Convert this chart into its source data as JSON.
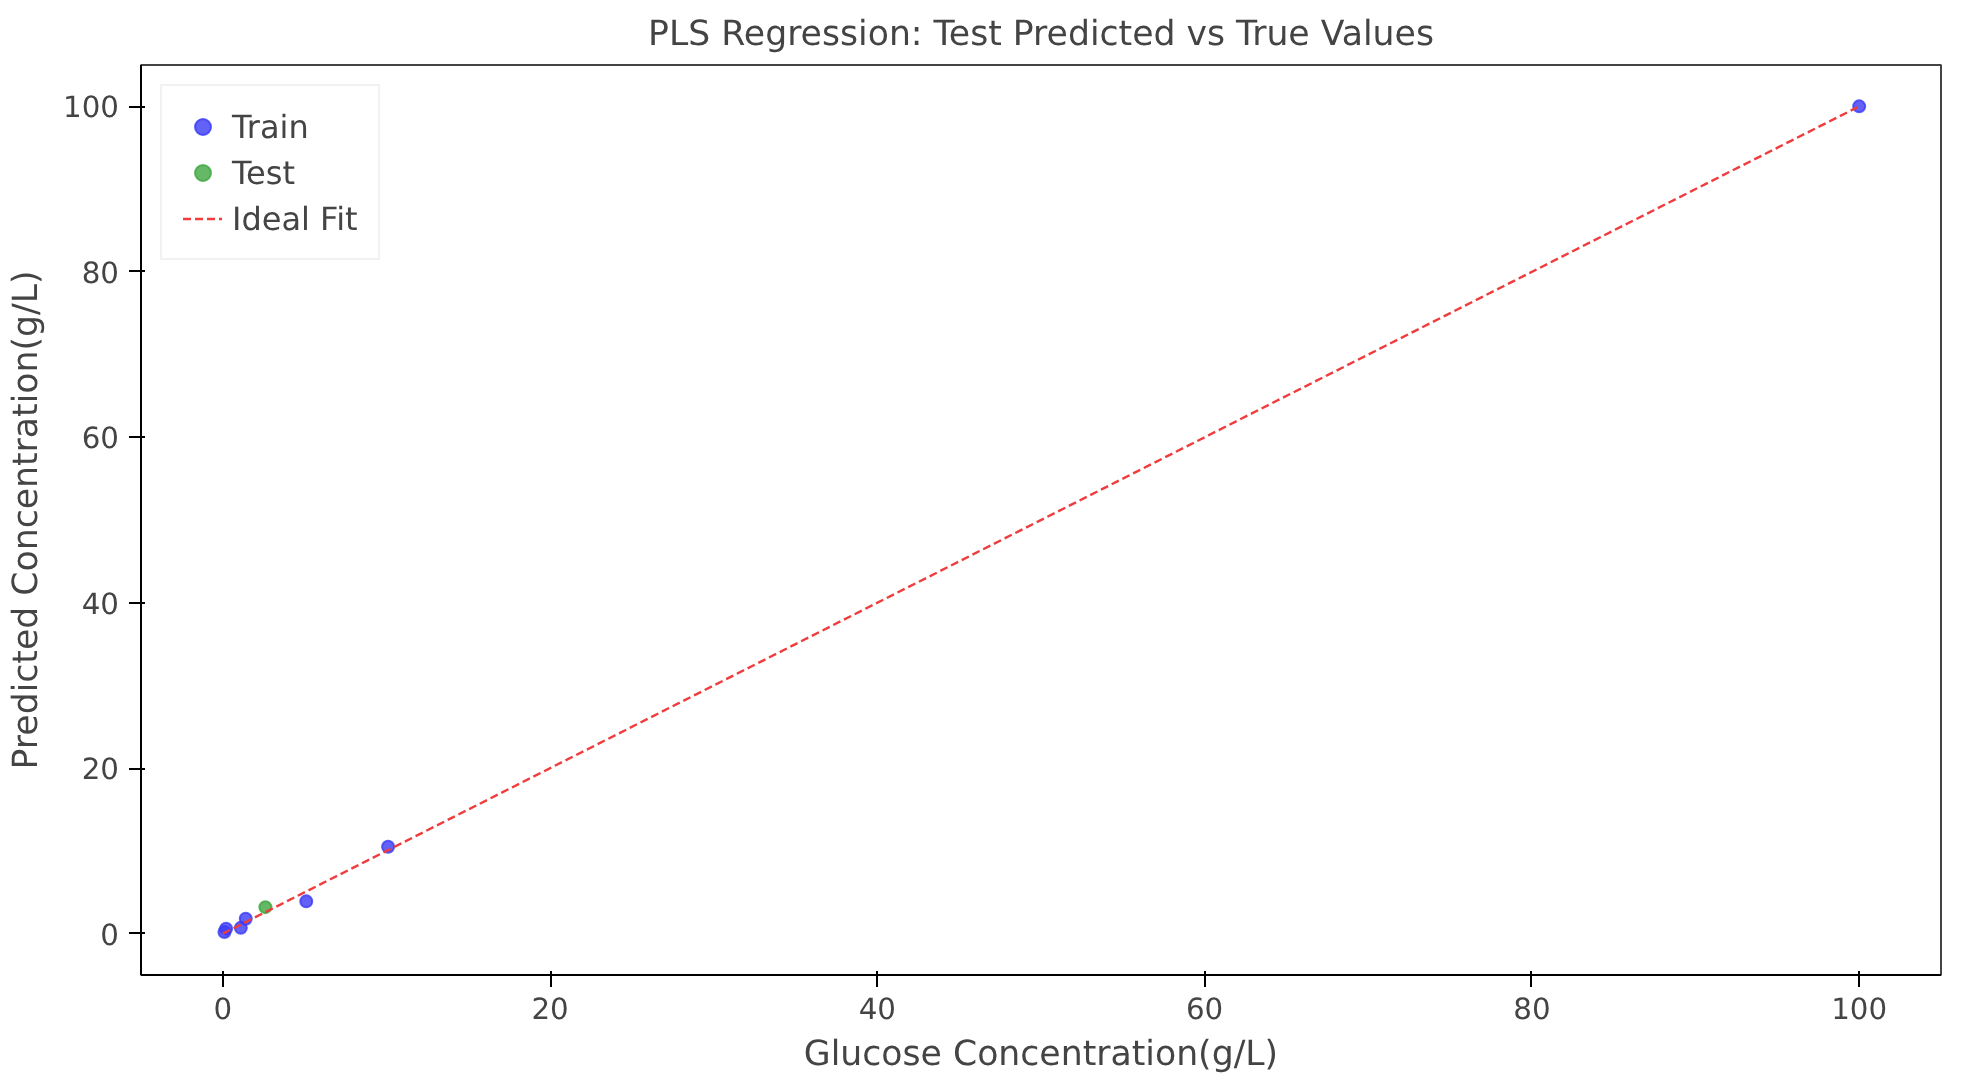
{
  "chart_data": {
    "type": "scatter",
    "title": "PLS Regression: Test Predicted vs True Values",
    "xlabel": "Glucose Concentration(g/L)",
    "ylabel": "Predicted Concentration(g/L)",
    "series": [
      {
        "name": "Train",
        "marker": "circle",
        "color": "#3b3bf5",
        "x": [
          0.1,
          0.2,
          1.1,
          1.4,
          5.1,
          10.1,
          100
        ],
        "values": [
          0.2,
          0.6,
          0.7,
          1.8,
          3.9,
          10.5,
          100
        ]
      },
      {
        "name": "Test",
        "marker": "circle",
        "color": "#3fa63f",
        "x": [
          2.6
        ],
        "values": [
          3.2
        ]
      },
      {
        "name": "Ideal Fit",
        "type": "line",
        "line_style": "dashed",
        "color": "#f03c3c",
        "x": [
          0,
          100
        ],
        "values": [
          0,
          100
        ]
      }
    ],
    "xlim": [
      -5,
      105
    ],
    "ylim": [
      -5,
      105
    ],
    "xticks": [
      0,
      20,
      40,
      60,
      80,
      100
    ],
    "yticks": [
      0,
      20,
      40,
      60,
      80,
      100
    ],
    "grid": false,
    "legend": "top left"
  }
}
